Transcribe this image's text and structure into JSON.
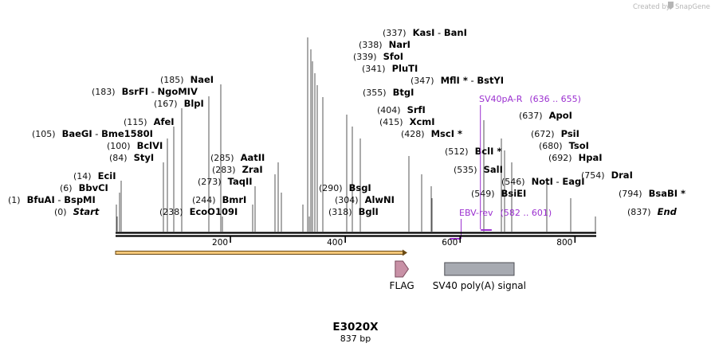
{
  "branding": {
    "created_by": "Created by",
    "app_name": "SnapGene"
  },
  "construct": {
    "name": "E3020X",
    "length_label": "837 bp",
    "length_bp": 837
  },
  "sites": [
    {
      "name": "Start",
      "pos_label": "(0)",
      "italic": true
    },
    {
      "name": "BfuAI",
      "name2": "BspMI",
      "pos_label": "(1)"
    },
    {
      "name": "BbvCI",
      "pos_label": "(6)"
    },
    {
      "name": "EciI",
      "pos_label": "(14)"
    },
    {
      "name": "StyI",
      "pos_label": "(84)"
    },
    {
      "name": "BclVI",
      "pos_label": "(100)"
    },
    {
      "name": "BaeGI",
      "name2": "Bme1580I",
      "pos_label": "(105)"
    },
    {
      "name": "AfeI",
      "pos_label": "(115)"
    },
    {
      "name": "BlpI",
      "pos_label": "(167)"
    },
    {
      "name": "BsrFI",
      "name2": "NgoMIV",
      "pos_label": "(183)"
    },
    {
      "name": "NaeI",
      "pos_label": "(185)"
    },
    {
      "name": "EcoO109I",
      "pos_label": "(238)"
    },
    {
      "name": "BmrI",
      "pos_label": "(244)"
    },
    {
      "name": "TaqII",
      "pos_label": "(273)"
    },
    {
      "name": "ZraI",
      "pos_label": "(283)"
    },
    {
      "name": "AatII",
      "pos_label": "(285)"
    },
    {
      "name": "BsgI",
      "pos_label": "(290)"
    },
    {
      "name": "AlwNI",
      "pos_label": "(304)"
    },
    {
      "name": "BglI",
      "pos_label": "(318)"
    },
    {
      "name": "KasI",
      "name2": "BanI",
      "pos_label": "(337)"
    },
    {
      "name": "NarI",
      "pos_label": "(338)"
    },
    {
      "name": "SfoI",
      "pos_label": "(339)"
    },
    {
      "name": "PluTI",
      "pos_label": "(341)"
    },
    {
      "name": "MflI *",
      "name2": "BstYI",
      "pos_label": "(347)"
    },
    {
      "name": "BtgI",
      "pos_label": "(355)"
    },
    {
      "name": "SrfI",
      "pos_label": "(404)"
    },
    {
      "name": "XcmI",
      "pos_label": "(415)"
    },
    {
      "name": "MscI *",
      "pos_label": "(428)"
    },
    {
      "name": "BclI *",
      "pos_label": "(512)"
    },
    {
      "name": "SalI",
      "pos_label": "(535)"
    },
    {
      "name": "NotI",
      "name2": "EagI",
      "pos_label": "(546)"
    },
    {
      "name": "BsiEI",
      "pos_label": "(549)"
    },
    {
      "name": "ApoI",
      "pos_label": "(637)"
    },
    {
      "name": "PsiI",
      "pos_label": "(672)"
    },
    {
      "name": "TsoI",
      "pos_label": "(680)"
    },
    {
      "name": "HpaI",
      "pos_label": "(692)"
    },
    {
      "name": "DraI",
      "pos_label": "(754)"
    },
    {
      "name": "BsaBI *",
      "pos_label": "(794)"
    },
    {
      "name": "End",
      "pos_label": "(837)",
      "italic": true
    }
  ],
  "primers": [
    {
      "name": "SV40pA-R",
      "range_label": "(636 .. 655)",
      "start": 636,
      "end": 655,
      "strand": "reverse"
    },
    {
      "name": "EBV-rev",
      "range_label": "(582 .. 601)",
      "start": 582,
      "end": 601,
      "strand": "reverse"
    }
  ],
  "ruler": {
    "ticks": [
      {
        "label": "200",
        "value": 200
      },
      {
        "label": "400",
        "value": 400
      },
      {
        "label": "600",
        "value": 600
      },
      {
        "label": "800",
        "value": 800
      }
    ]
  },
  "features": [
    {
      "name": "FLAG",
      "type": "arrow",
      "start": 487,
      "end": 510
    },
    {
      "name": "SV40 poly(A) signal",
      "type": "box",
      "start": 573,
      "end": 694
    }
  ],
  "colors": {
    "backbone": "#000000",
    "orf_fill": "#f4c87a",
    "orf_stroke": "#6b4a14",
    "flag_fill": "#c891a6",
    "flag_stroke": "#7a4a5c",
    "polya_fill": "#a7aab1",
    "polya_stroke": "#4d4f55",
    "primer": "#9b30d0",
    "leader": "#555555"
  }
}
